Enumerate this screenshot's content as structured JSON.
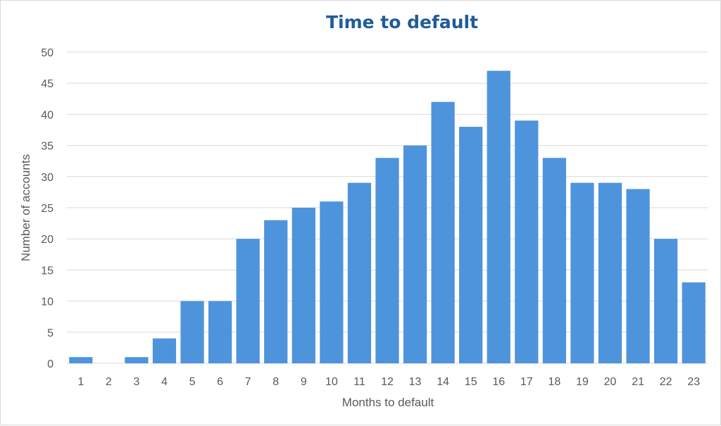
{
  "chart_data": {
    "type": "bar",
    "title": "Time to default",
    "xlabel": "Months to default",
    "ylabel": "Number of accounts",
    "categories": [
      "1",
      "2",
      "3",
      "4",
      "5",
      "6",
      "7",
      "8",
      "9",
      "10",
      "11",
      "12",
      "13",
      "14",
      "15",
      "16",
      "17",
      "18",
      "19",
      "20",
      "21",
      "22",
      "23"
    ],
    "values": [
      1,
      0,
      1,
      4,
      10,
      10,
      20,
      23,
      25,
      26,
      29,
      33,
      35,
      42,
      38,
      47,
      39,
      33,
      29,
      29,
      28,
      20,
      13
    ],
    "ylim": [
      0,
      50
    ],
    "yticks": [
      0,
      5,
      10,
      15,
      20,
      25,
      30,
      35,
      40,
      45,
      50
    ],
    "grid": true,
    "bar_color": "#4e94dc",
    "title_color": "#1f5c99"
  }
}
